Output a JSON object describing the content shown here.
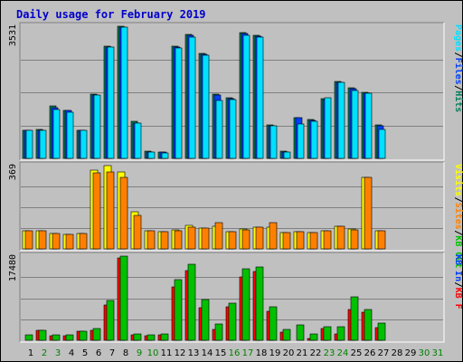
{
  "chart_data": {
    "type": "bar",
    "title": "Daily usage for February 2019",
    "colors": {
      "background": "#c0c0c0",
      "plot": "#c0c0c0",
      "title": "#0000cc",
      "hits": "#00805c",
      "files": "#0040ff",
      "pages": "#00e0ff",
      "visits": "#ffff00",
      "sites": "#ff8000",
      "kb_in": "#00c000",
      "kb_out": "#ff0000",
      "kb_f": "#e00000",
      "day": "#000000",
      "weekend": "#008000"
    },
    "categories": [
      "1",
      "2",
      "3",
      "4",
      "5",
      "6",
      "7",
      "8",
      "9",
      "10",
      "11",
      "12",
      "13",
      "14",
      "15",
      "16",
      "17",
      "18",
      "19",
      "20",
      "21",
      "22",
      "23",
      "24",
      "25",
      "26",
      "27",
      "28",
      "29",
      "30",
      "31"
    ],
    "weekend_days": [
      "2",
      "3",
      "9",
      "10",
      "16",
      "17",
      "23",
      "24",
      "30",
      "31"
    ],
    "panels": [
      {
        "id": "hits",
        "ymax": 3531,
        "ylabel": "3531",
        "legend": [
          {
            "text": "Pages",
            "color": "#00e0ff"
          },
          {
            "text": "Files",
            "color": "#0040ff"
          },
          {
            "text": "Hits",
            "color": "#00805c"
          }
        ],
        "series": [
          {
            "name": "Hits",
            "color": "#00805c",
            "values": [
              760,
              770,
              1400,
              1290,
              760,
              1720,
              2990,
              3531,
              980,
              200,
              180,
              3000,
              3320,
              2800,
              1720,
              1620,
              3360,
              3290,
              900,
              200,
              1100,
              1050,
              1600,
              2050,
              1890,
              1770,
              890,
              0,
              0,
              0,
              0
            ]
          },
          {
            "name": "Files",
            "color": "#0040ff",
            "values": [
              740,
              760,
              1350,
              1280,
              740,
              1700,
              2980,
              3500,
              950,
              180,
              160,
              2980,
              3280,
              2780,
              1700,
              1600,
              3330,
              3270,
              880,
              180,
              1080,
              1020,
              1580,
              2030,
              1860,
              1740,
              870,
              0,
              0,
              0,
              0
            ]
          },
          {
            "name": "Pages",
            "color": "#00e0ff",
            "values": [
              740,
              760,
              1310,
              1240,
              740,
              1690,
              2980,
              3500,
              950,
              180,
              150,
              2960,
              3230,
              2760,
              1540,
              1570,
              3300,
              3250,
              860,
              160,
              930,
              980,
              1620,
              2030,
              1820,
              1750,
              780,
              0,
              0,
              0,
              0
            ]
          }
        ]
      },
      {
        "id": "visits",
        "ymax": 369,
        "ylabel": "369",
        "legend": [
          {
            "text": "Visits",
            "color": "#ffff00"
          },
          {
            "text": "Sites",
            "color": "#ff8000"
          },
          {
            "text": "KB Out",
            "color": "#00c000"
          }
        ],
        "series": [
          {
            "name": "Visits",
            "color": "#ffff00",
            "values": [
              80,
              82,
              68,
              64,
              68,
              348,
              369,
              340,
              164,
              80,
              76,
              84,
              105,
              93,
              100,
              76,
              88,
              98,
              95,
              73,
              77,
              72,
              80,
              100,
              87,
              315,
              80,
              0,
              0,
              0,
              0
            ]
          },
          {
            "name": "Sites",
            "color": "#ff8000",
            "values": [
              80,
              82,
              68,
              64,
              68,
              335,
              340,
              315,
              150,
              80,
              75,
              82,
              97,
              93,
              117,
              76,
              85,
              97,
              118,
              73,
              77,
              72,
              80,
              100,
              85,
              318,
              80,
              0,
              0,
              0,
              0
            ]
          }
        ]
      },
      {
        "id": "kbytes",
        "ymax": 17480,
        "ylabel": "17480",
        "legend": [
          {
            "text": "KB In",
            "color": "#0040ff"
          },
          {
            "text": "KB F",
            "color": "#ff0000"
          }
        ],
        "series": [
          {
            "name": "KB F",
            "color": "#ff0000",
            "values": [
              0,
              1980,
              900,
              900,
              1800,
              2100,
              7400,
              17100,
              1200,
              1000,
              1200,
              11100,
              14500,
              6800,
              2300,
              7000,
              13100,
              14200,
              6100,
              1700,
              0,
              300,
              2400,
              1300,
              6400,
              5800,
              2600,
              0,
              0,
              0,
              0
            ]
          },
          {
            "name": "KB In",
            "color": "#00c000",
            "values": [
              1050,
              2100,
              1100,
              1050,
              1900,
              2500,
              8300,
              17480,
              1300,
              1100,
              1300,
              12600,
              15800,
              8400,
              3300,
              7800,
              14800,
              15200,
              6900,
              2300,
              3200,
              1400,
              2900,
              2900,
              9100,
              6300,
              3600,
              0,
              0,
              0,
              0
            ]
          }
        ]
      }
    ]
  }
}
